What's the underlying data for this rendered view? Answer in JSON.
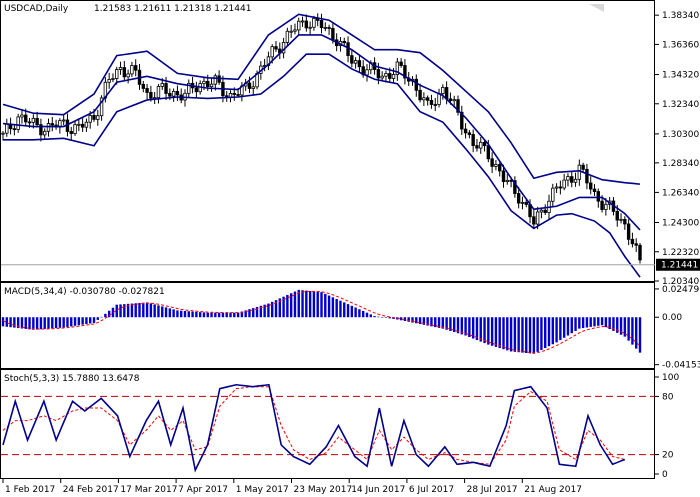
{
  "header": {
    "symbol": "USDCAD,Daily",
    "ohlc": "1.21583 1.21611 1.21318 1.21441"
  },
  "colors": {
    "background": "#ffffff",
    "candle": "#000000",
    "bands": "#00008b",
    "macd_hist": "#0000cd",
    "signal": "#ff0000",
    "stoch_main": "#00008b",
    "stoch_signal": "#ff0000",
    "level_line": "#c00000"
  },
  "chart_data": [
    {
      "type": "candlestick",
      "name": "price",
      "ylim": [
        1.2034,
        1.393
      ],
      "y_ticks": [
        "1.38340",
        "1.36360",
        "1.34320",
        "1.32340",
        "1.30300",
        "1.28340",
        "1.26340",
        "1.24300",
        "1.22320",
        "1.20340"
      ],
      "y_tick_values": [
        1.3834,
        1.3636,
        1.3432,
        1.3234,
        1.303,
        1.2834,
        1.2634,
        1.243,
        1.2232,
        1.2034
      ],
      "current_price_label": "1.21441",
      "current_price": 1.21441,
      "indicator": "Bollinger Bands",
      "close_path": [
        [
          0,
          1.301
        ],
        [
          4,
          1.315
        ],
        [
          8,
          1.309
        ],
        [
          12,
          1.307
        ],
        [
          16,
          1.31
        ],
        [
          20,
          1.306
        ],
        [
          24,
          1.315
        ],
        [
          28,
          1.339
        ],
        [
          31,
          1.348
        ],
        [
          35,
          1.343
        ],
        [
          38,
          1.33
        ],
        [
          42,
          1.332
        ],
        [
          45,
          1.331
        ],
        [
          48,
          1.329
        ],
        [
          52,
          1.338
        ],
        [
          56,
          1.337
        ],
        [
          60,
          1.329
        ],
        [
          64,
          1.333
        ],
        [
          68,
          1.347
        ],
        [
          72,
          1.361
        ],
        [
          76,
          1.372
        ],
        [
          80,
          1.38
        ],
        [
          84,
          1.376
        ],
        [
          88,
          1.368
        ],
        [
          92,
          1.352
        ],
        [
          96,
          1.347
        ],
        [
          100,
          1.342
        ],
        [
          104,
          1.347
        ],
        [
          108,
          1.339
        ],
        [
          112,
          1.32
        ],
        [
          116,
          1.334
        ],
        [
          120,
          1.316
        ],
        [
          124,
          1.296
        ],
        [
          128,
          1.29
        ],
        [
          132,
          1.272
        ],
        [
          136,
          1.262
        ],
        [
          140,
          1.242
        ],
        [
          144,
          1.26
        ],
        [
          148,
          1.27
        ],
        [
          152,
          1.279
        ],
        [
          156,
          1.262
        ],
        [
          160,
          1.252
        ],
        [
          164,
          1.242
        ],
        [
          166,
          1.23
        ],
        [
          168,
          1.2144
        ]
      ],
      "upper_band": [
        [
          0,
          1.323
        ],
        [
          8,
          1.317
        ],
        [
          16,
          1.316
        ],
        [
          24,
          1.33
        ],
        [
          30,
          1.356
        ],
        [
          38,
          1.359
        ],
        [
          46,
          1.344
        ],
        [
          54,
          1.341
        ],
        [
          62,
          1.34
        ],
        [
          70,
          1.37
        ],
        [
          78,
          1.384
        ],
        [
          86,
          1.38
        ],
        [
          92,
          1.37
        ],
        [
          98,
          1.36
        ],
        [
          104,
          1.36
        ],
        [
          110,
          1.358
        ],
        [
          116,
          1.346
        ],
        [
          122,
          1.332
        ],
        [
          128,
          1.318
        ],
        [
          134,
          1.297
        ],
        [
          140,
          1.273
        ],
        [
          146,
          1.277
        ],
        [
          152,
          1.278
        ],
        [
          158,
          1.272
        ],
        [
          164,
          1.27
        ],
        [
          168,
          1.269
        ]
      ],
      "middle_band": [
        [
          0,
          1.31
        ],
        [
          8,
          1.308
        ],
        [
          16,
          1.308
        ],
        [
          24,
          1.318
        ],
        [
          30,
          1.338
        ],
        [
          38,
          1.342
        ],
        [
          46,
          1.337
        ],
        [
          54,
          1.334
        ],
        [
          62,
          1.333
        ],
        [
          70,
          1.35
        ],
        [
          78,
          1.37
        ],
        [
          84,
          1.37
        ],
        [
          92,
          1.36
        ],
        [
          98,
          1.349
        ],
        [
          104,
          1.345
        ],
        [
          110,
          1.336
        ],
        [
          116,
          1.329
        ],
        [
          122,
          1.314
        ],
        [
          128,
          1.296
        ],
        [
          134,
          1.273
        ],
        [
          140,
          1.252
        ],
        [
          146,
          1.254
        ],
        [
          152,
          1.26
        ],
        [
          158,
          1.26
        ],
        [
          164,
          1.249
        ],
        [
          168,
          1.238
        ]
      ],
      "lower_band": [
        [
          0,
          1.299
        ],
        [
          8,
          1.299
        ],
        [
          16,
          1.3
        ],
        [
          24,
          1.295
        ],
        [
          30,
          1.318
        ],
        [
          38,
          1.326
        ],
        [
          46,
          1.328
        ],
        [
          54,
          1.327
        ],
        [
          62,
          1.328
        ],
        [
          68,
          1.33
        ],
        [
          74,
          1.342
        ],
        [
          80,
          1.357
        ],
        [
          86,
          1.357
        ],
        [
          92,
          1.347
        ],
        [
          98,
          1.34
        ],
        [
          104,
          1.337
        ],
        [
          110,
          1.318
        ],
        [
          116,
          1.311
        ],
        [
          122,
          1.293
        ],
        [
          128,
          1.274
        ],
        [
          134,
          1.251
        ],
        [
          140,
          1.239
        ],
        [
          146,
          1.248
        ],
        [
          150,
          1.249
        ],
        [
          156,
          1.244
        ],
        [
          160,
          1.236
        ],
        [
          164,
          1.22
        ],
        [
          168,
          1.206
        ]
      ]
    },
    {
      "type": "bar",
      "name": "macd",
      "title": "MACD(5,34,4) -0.030780 -0.027821",
      "ylim": [
        -0.04536,
        0.03
      ],
      "y_ticks": [
        "0.024796",
        "0.00",
        "-0.041536"
      ],
      "y_tick_values": [
        0.024796,
        0.0,
        -0.041536
      ],
      "histogram_path": [
        [
          0,
          -0.008
        ],
        [
          8,
          -0.011
        ],
        [
          16,
          -0.009
        ],
        [
          24,
          -0.005
        ],
        [
          30,
          0.011
        ],
        [
          38,
          0.013
        ],
        [
          46,
          0.006
        ],
        [
          54,
          0.004
        ],
        [
          62,
          0.004
        ],
        [
          70,
          0.012
        ],
        [
          78,
          0.024
        ],
        [
          84,
          0.022
        ],
        [
          92,
          0.01
        ],
        [
          98,
          0.001
        ],
        [
          104,
          -0.002
        ],
        [
          110,
          -0.006
        ],
        [
          116,
          -0.01
        ],
        [
          122,
          -0.016
        ],
        [
          128,
          -0.024
        ],
        [
          134,
          -0.03
        ],
        [
          140,
          -0.032
        ],
        [
          146,
          -0.022
        ],
        [
          152,
          -0.01
        ],
        [
          158,
          -0.007
        ],
        [
          164,
          -0.017
        ],
        [
          168,
          -0.031
        ]
      ]
    },
    {
      "type": "line",
      "name": "stochastic",
      "title": "Stoch(5,3,3) 15.7880 13.6478",
      "ylim": [
        0,
        100
      ],
      "y_ticks": [
        "100",
        "80",
        "20",
        "0"
      ],
      "y_tick_values": [
        100,
        80,
        20,
        0
      ],
      "levels": [
        80,
        20
      ],
      "main_path": [
        [
          0,
          30
        ],
        [
          3,
          75
        ],
        [
          6,
          35
        ],
        [
          10,
          75
        ],
        [
          13,
          35
        ],
        [
          17,
          75
        ],
        [
          20,
          65
        ],
        [
          24,
          78
        ],
        [
          28,
          60
        ],
        [
          31,
          18
        ],
        [
          35,
          55
        ],
        [
          38,
          75
        ],
        [
          41,
          30
        ],
        [
          44,
          68
        ],
        [
          47,
          4
        ],
        [
          50,
          30
        ],
        [
          53,
          88
        ],
        [
          57,
          92
        ],
        [
          61,
          90
        ],
        [
          65,
          92
        ],
        [
          68,
          30
        ],
        [
          71,
          18
        ],
        [
          75,
          10
        ],
        [
          79,
          28
        ],
        [
          82,
          50
        ],
        [
          86,
          18
        ],
        [
          89,
          8
        ],
        [
          92,
          68
        ],
        [
          95,
          8
        ],
        [
          98,
          55
        ],
        [
          101,
          20
        ],
        [
          104,
          8
        ],
        [
          108,
          28
        ],
        [
          111,
          10
        ],
        [
          115,
          12
        ],
        [
          119,
          8
        ],
        [
          123,
          50
        ],
        [
          125,
          86
        ],
        [
          129,
          90
        ],
        [
          133,
          68
        ],
        [
          136,
          10
        ],
        [
          140,
          8
        ],
        [
          143,
          60
        ],
        [
          146,
          30
        ],
        [
          149,
          10
        ],
        [
          152,
          15
        ]
      ],
      "signal_path": [
        [
          0,
          45
        ],
        [
          3,
          55
        ],
        [
          6,
          55
        ],
        [
          10,
          60
        ],
        [
          13,
          55
        ],
        [
          17,
          65
        ],
        [
          20,
          68
        ],
        [
          24,
          68
        ],
        [
          28,
          55
        ],
        [
          31,
          30
        ],
        [
          35,
          45
        ],
        [
          38,
          60
        ],
        [
          41,
          45
        ],
        [
          44,
          55
        ],
        [
          47,
          25
        ],
        [
          50,
          28
        ],
        [
          53,
          70
        ],
        [
          57,
          88
        ],
        [
          61,
          90
        ],
        [
          65,
          90
        ],
        [
          68,
          50
        ],
        [
          71,
          25
        ],
        [
          75,
          15
        ],
        [
          79,
          22
        ],
        [
          82,
          38
        ],
        [
          86,
          25
        ],
        [
          89,
          15
        ],
        [
          92,
          45
        ],
        [
          95,
          25
        ],
        [
          98,
          38
        ],
        [
          101,
          25
        ],
        [
          104,
          15
        ],
        [
          108,
          22
        ],
        [
          111,
          15
        ],
        [
          115,
          12
        ],
        [
          119,
          10
        ],
        [
          123,
          35
        ],
        [
          125,
          70
        ],
        [
          129,
          85
        ],
        [
          133,
          75
        ],
        [
          136,
          25
        ],
        [
          140,
          15
        ],
        [
          143,
          45
        ],
        [
          146,
          35
        ],
        [
          149,
          18
        ],
        [
          152,
          15
        ]
      ]
    }
  ],
  "x_axis": {
    "labels": [
      "1 Feb 2017",
      "24 Feb 2017",
      "17 Mar 2017",
      "7 Apr 2017",
      "1 May 2017",
      "23 May 2017",
      "14 Jun 2017",
      "6 Jul 2017",
      "28 Jul 2017",
      "21 Aug 2017"
    ]
  }
}
